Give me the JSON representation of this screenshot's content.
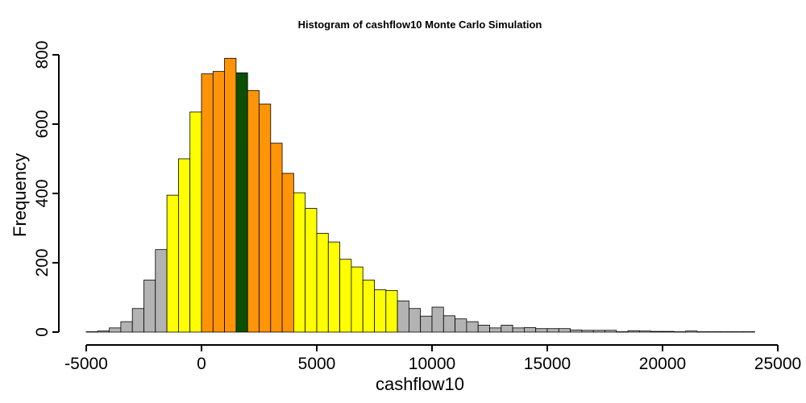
{
  "chart_data": {
    "type": "bar",
    "title": "Histogram of  cashflow10  Monte Carlo Simulation",
    "xlabel": "cashflow10",
    "ylabel": "Frequency",
    "xlim": [
      -5000,
      25000
    ],
    "ylim": [
      0,
      800
    ],
    "bin_width": 500,
    "bin_start": -5000,
    "x_ticks": [
      "-5000",
      "0",
      "5000",
      "10000",
      "15000",
      "20000",
      "25000"
    ],
    "y_ticks": [
      "0",
      "200",
      "400",
      "600",
      "800"
    ],
    "grid": false,
    "legend": "none",
    "colors": {
      "tail": "#b3b3b3",
      "outer": "#ffff00",
      "inner": "#ff9408",
      "median": "#0b5000",
      "border": "#000000"
    },
    "bins": [
      {
        "x0": -5000,
        "x1": -4500,
        "count": 1,
        "band": "tail"
      },
      {
        "x0": -4500,
        "x1": -4000,
        "count": 3,
        "band": "tail"
      },
      {
        "x0": -4000,
        "x1": -3500,
        "count": 12,
        "band": "tail"
      },
      {
        "x0": -3500,
        "x1": -3000,
        "count": 30,
        "band": "tail"
      },
      {
        "x0": -3000,
        "x1": -2500,
        "count": 68,
        "band": "tail"
      },
      {
        "x0": -2500,
        "x1": -2000,
        "count": 150,
        "band": "tail"
      },
      {
        "x0": -2000,
        "x1": -1500,
        "count": 238,
        "band": "tail"
      },
      {
        "x0": -1500,
        "x1": -1000,
        "count": 395,
        "band": "outer"
      },
      {
        "x0": -1000,
        "x1": -500,
        "count": 500,
        "band": "outer"
      },
      {
        "x0": -500,
        "x1": 0,
        "count": 635,
        "band": "outer"
      },
      {
        "x0": 0,
        "x1": 500,
        "count": 745,
        "band": "inner"
      },
      {
        "x0": 500,
        "x1": 1000,
        "count": 752,
        "band": "inner"
      },
      {
        "x0": 1000,
        "x1": 1500,
        "count": 790,
        "band": "inner"
      },
      {
        "x0": 1500,
        "x1": 2000,
        "count": 748,
        "band": "median"
      },
      {
        "x0": 2000,
        "x1": 2500,
        "count": 697,
        "band": "inner"
      },
      {
        "x0": 2500,
        "x1": 3000,
        "count": 658,
        "band": "inner"
      },
      {
        "x0": 3000,
        "x1": 3500,
        "count": 545,
        "band": "inner"
      },
      {
        "x0": 3500,
        "x1": 4000,
        "count": 458,
        "band": "inner"
      },
      {
        "x0": 4000,
        "x1": 4500,
        "count": 402,
        "band": "outer"
      },
      {
        "x0": 4500,
        "x1": 5000,
        "count": 357,
        "band": "outer"
      },
      {
        "x0": 5000,
        "x1": 5500,
        "count": 285,
        "band": "outer"
      },
      {
        "x0": 5500,
        "x1": 6000,
        "count": 260,
        "band": "outer"
      },
      {
        "x0": 6000,
        "x1": 6500,
        "count": 210,
        "band": "outer"
      },
      {
        "x0": 6500,
        "x1": 7000,
        "count": 188,
        "band": "outer"
      },
      {
        "x0": 7000,
        "x1": 7500,
        "count": 150,
        "band": "outer"
      },
      {
        "x0": 7500,
        "x1": 8000,
        "count": 122,
        "band": "outer"
      },
      {
        "x0": 8000,
        "x1": 8500,
        "count": 120,
        "band": "outer"
      },
      {
        "x0": 8500,
        "x1": 9000,
        "count": 90,
        "band": "tail"
      },
      {
        "x0": 9000,
        "x1": 9500,
        "count": 68,
        "band": "tail"
      },
      {
        "x0": 9500,
        "x1": 10000,
        "count": 46,
        "band": "tail"
      },
      {
        "x0": 10000,
        "x1": 10500,
        "count": 72,
        "band": "tail"
      },
      {
        "x0": 10500,
        "x1": 11000,
        "count": 47,
        "band": "tail"
      },
      {
        "x0": 11000,
        "x1": 11500,
        "count": 38,
        "band": "tail"
      },
      {
        "x0": 11500,
        "x1": 12000,
        "count": 30,
        "band": "tail"
      },
      {
        "x0": 12000,
        "x1": 12500,
        "count": 20,
        "band": "tail"
      },
      {
        "x0": 12500,
        "x1": 13000,
        "count": 12,
        "band": "tail"
      },
      {
        "x0": 13000,
        "x1": 13500,
        "count": 20,
        "band": "tail"
      },
      {
        "x0": 13500,
        "x1": 14000,
        "count": 12,
        "band": "tail"
      },
      {
        "x0": 14000,
        "x1": 14500,
        "count": 13,
        "band": "tail"
      },
      {
        "x0": 14500,
        "x1": 15000,
        "count": 10,
        "band": "tail"
      },
      {
        "x0": 15000,
        "x1": 15500,
        "count": 10,
        "band": "tail"
      },
      {
        "x0": 15500,
        "x1": 16000,
        "count": 10,
        "band": "tail"
      },
      {
        "x0": 16000,
        "x1": 16500,
        "count": 6,
        "band": "tail"
      },
      {
        "x0": 16500,
        "x1": 17000,
        "count": 5,
        "band": "tail"
      },
      {
        "x0": 17000,
        "x1": 17500,
        "count": 5,
        "band": "tail"
      },
      {
        "x0": 17500,
        "x1": 18000,
        "count": 5,
        "band": "tail"
      },
      {
        "x0": 18000,
        "x1": 18500,
        "count": 1,
        "band": "tail"
      },
      {
        "x0": 18500,
        "x1": 19000,
        "count": 4,
        "band": "tail"
      },
      {
        "x0": 19000,
        "x1": 19500,
        "count": 3,
        "band": "tail"
      },
      {
        "x0": 19500,
        "x1": 20000,
        "count": 2,
        "band": "tail"
      },
      {
        "x0": 20000,
        "x1": 20500,
        "count": 2,
        "band": "tail"
      },
      {
        "x0": 20500,
        "x1": 21000,
        "count": 1,
        "band": "tail"
      },
      {
        "x0": 21000,
        "x1": 21500,
        "count": 3,
        "band": "tail"
      },
      {
        "x0": 21500,
        "x1": 22000,
        "count": 1,
        "band": "tail"
      },
      {
        "x0": 22000,
        "x1": 22500,
        "count": 1,
        "band": "tail"
      },
      {
        "x0": 22500,
        "x1": 23000,
        "count": 1,
        "band": "tail"
      },
      {
        "x0": 23000,
        "x1": 23500,
        "count": 1,
        "band": "tail"
      },
      {
        "x0": 23500,
        "x1": 24000,
        "count": 1,
        "band": "tail"
      }
    ]
  }
}
